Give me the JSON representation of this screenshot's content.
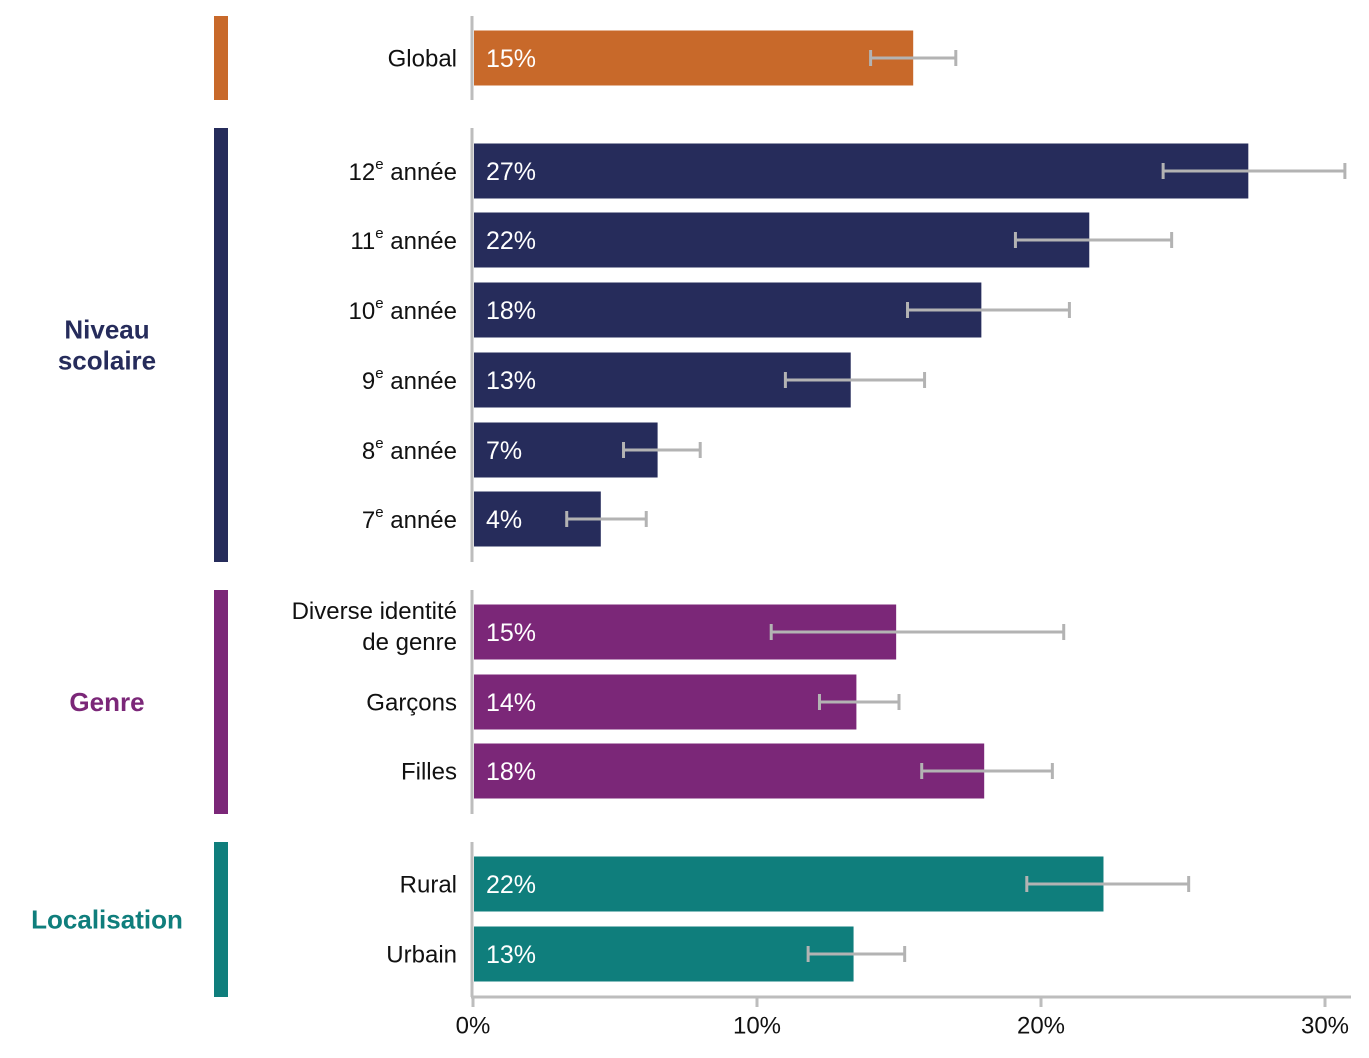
{
  "chart_data": {
    "type": "bar",
    "orientation": "horizontal",
    "title": "",
    "xlabel": "",
    "ylabel": "",
    "xlim": [
      0,
      30
    ],
    "x_ticks": [
      "0%",
      "10%",
      "20%",
      "30%"
    ],
    "x_tick_values": [
      0,
      10,
      20,
      30
    ],
    "value_unit": "%",
    "grid": false,
    "legend": "none",
    "groups": [
      {
        "name": "",
        "name_lines": [],
        "color": "#C8692A",
        "bars": [
          {
            "label": "Global",
            "label_lines": [
              "Global"
            ],
            "value": 15.5,
            "value_label": "15%",
            "ci": [
              14.0,
              17.0
            ]
          }
        ]
      },
      {
        "name": "Niveau scolaire",
        "name_lines": [
          "Niveau",
          "scolaire"
        ],
        "color": "#262C5B",
        "bars": [
          {
            "label": "12e année",
            "ordinal": "12",
            "ordinal_sup": "e",
            "rest": "année",
            "value": 27.3,
            "value_label": "27%",
            "ci": [
              24.3,
              30.7
            ]
          },
          {
            "label": "11e année",
            "ordinal": "11",
            "ordinal_sup": "e",
            "rest": "année",
            "value": 21.7,
            "value_label": "22%",
            "ci": [
              19.1,
              24.6
            ]
          },
          {
            "label": "10e année",
            "ordinal": "10",
            "ordinal_sup": "e",
            "rest": "année",
            "value": 17.9,
            "value_label": "18%",
            "ci": [
              15.3,
              21.0
            ]
          },
          {
            "label": "9e année",
            "ordinal": "9",
            "ordinal_sup": "e",
            "rest": "année",
            "value": 13.3,
            "value_label": "13%",
            "ci": [
              11.0,
              15.9
            ]
          },
          {
            "label": "8e année",
            "ordinal": "8",
            "ordinal_sup": "e",
            "rest": "année",
            "value": 6.5,
            "value_label": "7%",
            "ci": [
              5.3,
              8.0
            ]
          },
          {
            "label": "7e année",
            "ordinal": "7",
            "ordinal_sup": "e",
            "rest": "année",
            "value": 4.5,
            "value_label": "4%",
            "ci": [
              3.3,
              6.1
            ]
          }
        ]
      },
      {
        "name": "Genre",
        "name_lines": [
          "Genre"
        ],
        "color": "#7B2778",
        "bars": [
          {
            "label": "Diverse identité de genre",
            "label_lines": [
              "Diverse identité",
              "de genre"
            ],
            "value": 14.9,
            "value_label": "15%",
            "ci": [
              10.5,
              20.8
            ]
          },
          {
            "label": "Garçons",
            "label_lines": [
              "Garçons"
            ],
            "value": 13.5,
            "value_label": "14%",
            "ci": [
              12.2,
              15.0
            ]
          },
          {
            "label": "Filles",
            "label_lines": [
              "Filles"
            ],
            "value": 18.0,
            "value_label": "18%",
            "ci": [
              15.8,
              20.4
            ]
          }
        ]
      },
      {
        "name": "Localisation",
        "name_lines": [
          "Localisation"
        ],
        "color": "#0F7E7C",
        "bars": [
          {
            "label": "Rural",
            "label_lines": [
              "Rural"
            ],
            "value": 22.2,
            "value_label": "22%",
            "ci": [
              19.5,
              25.2
            ]
          },
          {
            "label": "Urbain",
            "label_lines": [
              "Urbain"
            ],
            "value": 13.4,
            "value_label": "13%",
            "ci": [
              11.8,
              15.2
            ]
          }
        ]
      }
    ],
    "colors": {
      "error_bar": "#B3B3B3",
      "axis": "#BDBDBD",
      "label_text": "#111111",
      "value_text": "#FFFFFF"
    }
  }
}
